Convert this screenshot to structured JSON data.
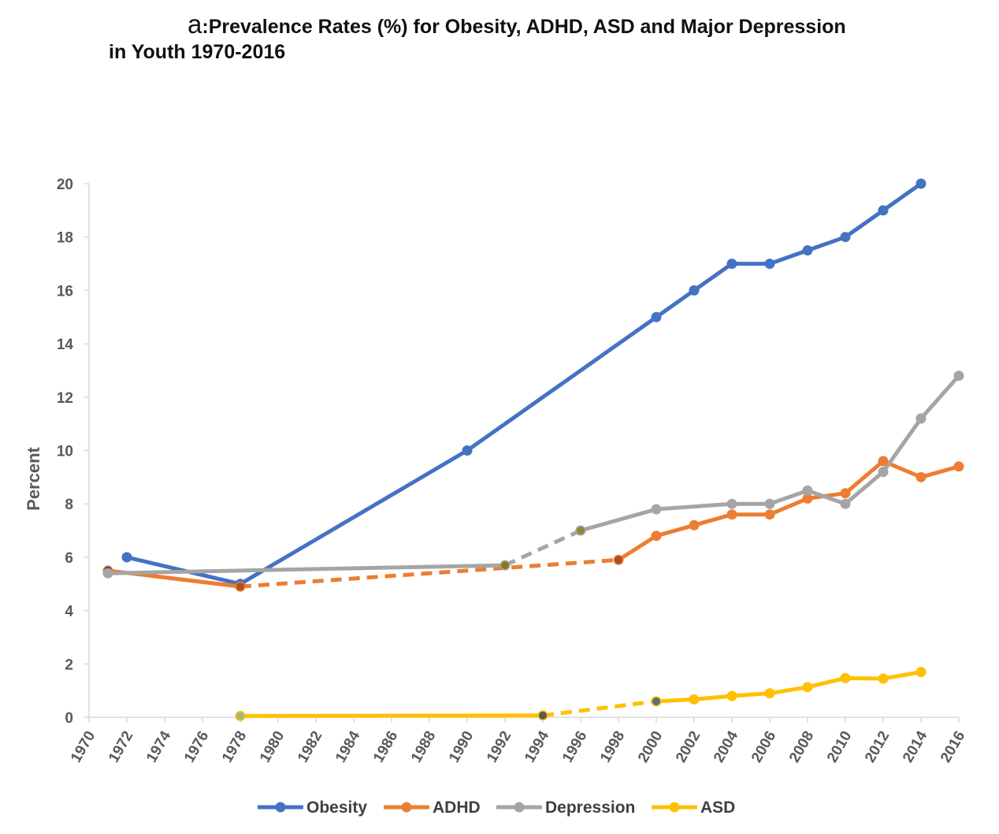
{
  "chart_data": {
    "type": "line",
    "title_prefix": "a",
    "title_sep": ":",
    "title_line1": "Prevalence Rates (%) for Obesity, ADHD, ASD and Major Depression",
    "title_line2": "in Youth 1970-2016",
    "xlabel": "",
    "ylabel": "Percent",
    "xlim": [
      1970,
      2016
    ],
    "ylim": [
      0,
      20
    ],
    "x_ticks": [
      1970,
      1972,
      1974,
      1976,
      1978,
      1980,
      1982,
      1984,
      1986,
      1988,
      1990,
      1992,
      1994,
      1996,
      1998,
      2000,
      2002,
      2004,
      2006,
      2008,
      2010,
      2012,
      2014,
      2016
    ],
    "y_ticks": [
      0,
      2,
      4,
      6,
      8,
      10,
      12,
      14,
      16,
      18,
      20
    ],
    "grid": false,
    "legend_position": "bottom",
    "series": [
      {
        "name": "Obesity",
        "color": "#4472C4",
        "points": [
          [
            1972,
            6.0
          ],
          [
            1978,
            5.0
          ],
          [
            1990,
            10.0
          ],
          [
            2000,
            15.0
          ],
          [
            2002,
            16.0
          ],
          [
            2004,
            17.0
          ],
          [
            2006,
            17.0
          ],
          [
            2008,
            17.5
          ],
          [
            2010,
            18.0
          ],
          [
            2012,
            19.0
          ],
          [
            2014,
            20.0
          ]
        ],
        "segments": [
          {
            "from": 0,
            "to": 10,
            "style": "solid"
          }
        ]
      },
      {
        "name": "ADHD",
        "color": "#ED7D31",
        "points": [
          [
            1971,
            5.5
          ],
          [
            1978,
            4.9
          ],
          [
            1998,
            5.9
          ],
          [
            2000,
            6.8
          ],
          [
            2002,
            7.2
          ],
          [
            2004,
            7.6
          ],
          [
            2006,
            7.6
          ],
          [
            2008,
            8.2
          ],
          [
            2010,
            8.4
          ],
          [
            2012,
            9.6
          ],
          [
            2014,
            9.0
          ],
          [
            2016,
            9.4
          ]
        ],
        "segments": [
          {
            "from": 0,
            "to": 1,
            "style": "solid"
          },
          {
            "from": 1,
            "to": 2,
            "style": "dashed"
          },
          {
            "from": 2,
            "to": 11,
            "style": "solid"
          }
        ]
      },
      {
        "name": "Depression",
        "color": "#A5A5A5",
        "points": [
          [
            1971,
            5.4
          ],
          [
            1992,
            5.7
          ],
          [
            1996,
            7.0
          ],
          [
            2000,
            7.8
          ],
          [
            2004,
            8.0
          ],
          [
            2006,
            8.0
          ],
          [
            2008,
            8.5
          ],
          [
            2010,
            8.0
          ],
          [
            2012,
            9.2
          ],
          [
            2014,
            11.2
          ],
          [
            2016,
            12.8
          ]
        ],
        "segments": [
          {
            "from": 0,
            "to": 1,
            "style": "solid"
          },
          {
            "from": 1,
            "to": 2,
            "style": "dashed"
          },
          {
            "from": 2,
            "to": 10,
            "style": "solid"
          }
        ]
      },
      {
        "name": "ASD",
        "color": "#FFC000",
        "points": [
          [
            1978,
            0.05
          ],
          [
            1994,
            0.07
          ],
          [
            2000,
            0.6
          ],
          [
            2002,
            0.67
          ],
          [
            2004,
            0.8
          ],
          [
            2006,
            0.9
          ],
          [
            2008,
            1.13
          ],
          [
            2010,
            1.47
          ],
          [
            2012,
            1.45
          ],
          [
            2014,
            1.7
          ]
        ],
        "segments": [
          {
            "from": 0,
            "to": 1,
            "style": "solid"
          },
          {
            "from": 1,
            "to": 2,
            "style": "dashed"
          },
          {
            "from": 2,
            "to": 9,
            "style": "solid"
          }
        ]
      }
    ],
    "marker_overrides": [
      {
        "series": "ADHD",
        "point": 0,
        "color": "#2F4B8A"
      },
      {
        "series": "ADHD",
        "point": 1,
        "color": "#B5501A"
      },
      {
        "series": "ADHD",
        "point": 2,
        "color": "#A8511F"
      },
      {
        "series": "Depression",
        "point": 1,
        "color": "#8A7A1E"
      },
      {
        "series": "Depression",
        "point": 2,
        "color": "#8C8A3A"
      },
      {
        "series": "ASD",
        "point": 0,
        "color": "#A8B87A"
      },
      {
        "series": "ASD",
        "point": 1,
        "color": "#595959"
      },
      {
        "series": "ASD",
        "point": 2,
        "color": "#5A6E7E"
      }
    ]
  }
}
